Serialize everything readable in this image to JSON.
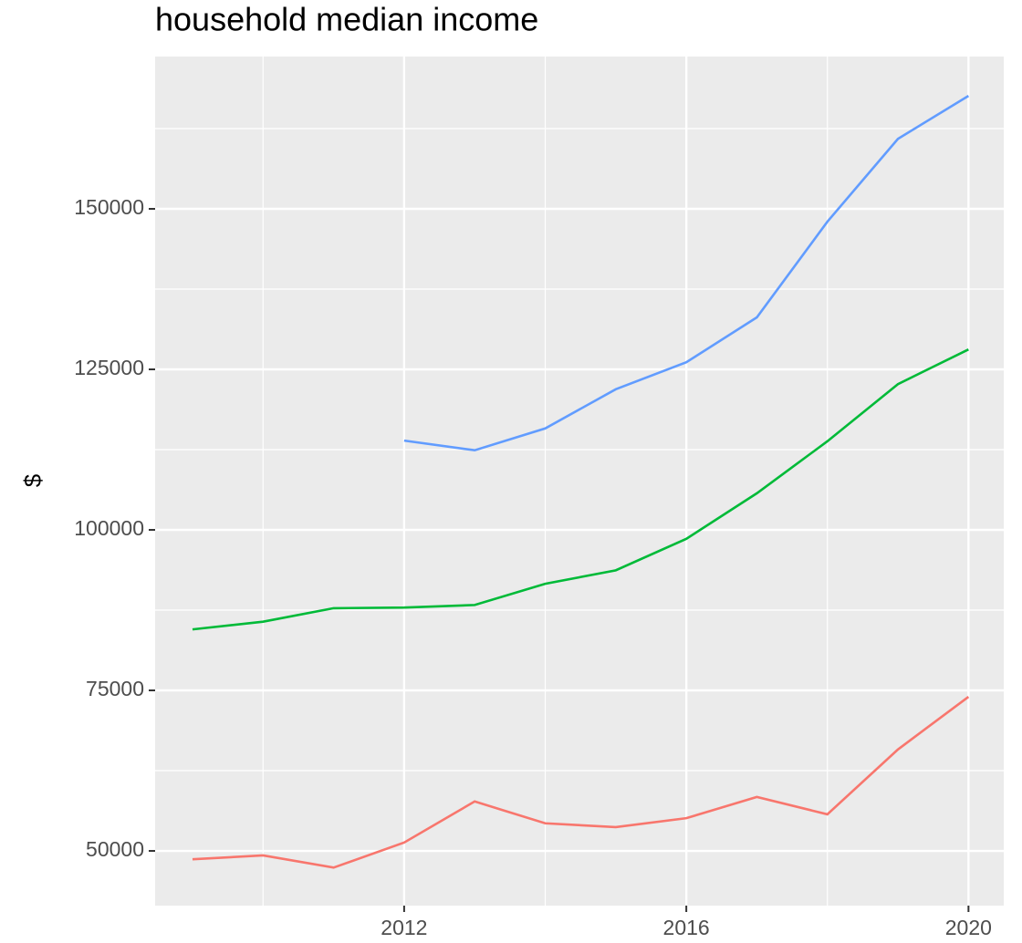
{
  "chart_data": {
    "type": "line",
    "title": "household median income",
    "y_label": "$",
    "x": [
      2009,
      2010,
      2011,
      2012,
      2013,
      2014,
      2015,
      2016,
      2017,
      2018,
      2019,
      2020
    ],
    "series": [
      {
        "color": "#F8766D",
        "values": [
          48700,
          49300,
          47400,
          51300,
          57700,
          54300,
          53700,
          55100,
          58400,
          55700,
          65800,
          74000
        ]
      },
      {
        "color": "#00BA38",
        "values": [
          84500,
          85700,
          87800,
          87900,
          88300,
          91600,
          93700,
          98600,
          105700,
          113800,
          122700,
          128100
        ]
      },
      {
        "color": "#619CFF",
        "values": [
          null,
          null,
          null,
          113900,
          112400,
          115800,
          121900,
          126100,
          133100,
          148000,
          160900,
          167600
        ]
      }
    ],
    "xlim": [
      2008.47,
      2020.5
    ],
    "ylim": [
      41480,
      173720
    ],
    "xticks": [
      2012,
      2016,
      2020
    ],
    "yticks": [
      50000,
      75000,
      100000,
      125000,
      150000
    ],
    "xminor": [
      2010,
      2014,
      2018
    ],
    "yminor": [
      62500,
      87500,
      112500,
      137500,
      162500
    ],
    "grid": true
  }
}
